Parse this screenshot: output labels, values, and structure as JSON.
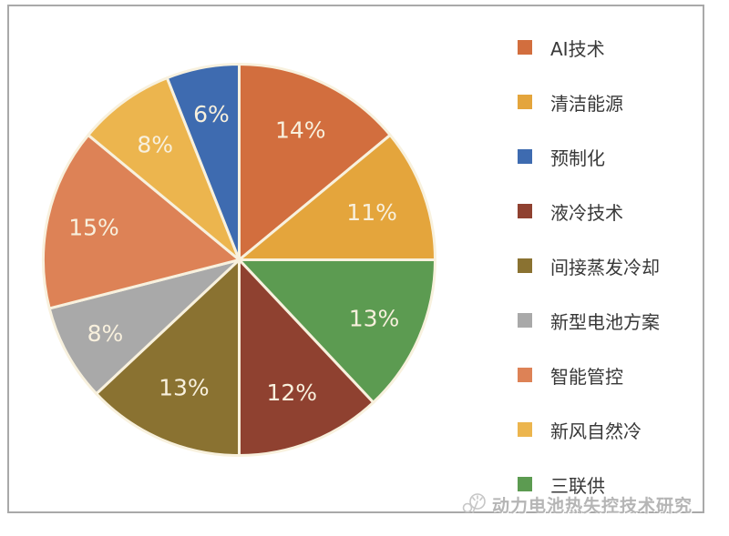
{
  "frame": {
    "border_color": "#a9a9a9",
    "background": "#ffffff"
  },
  "chart_data": {
    "type": "pie",
    "title": "",
    "start_angle_deg": 0,
    "direction": "clockwise",
    "label_format": "percent",
    "slice_label_color": "#f8f0dd",
    "slice_separator_color": "#f8f1de",
    "slices": [
      {
        "label": "AI技术",
        "value": 14,
        "pct_label": "14%",
        "color": "#d26e3e",
        "label_r": 0.735
      },
      {
        "label": "清洁能源",
        "value": 11,
        "pct_label": "11%",
        "color": "#e4a53c",
        "label_r": 0.72
      },
      {
        "label": "三联供",
        "value": 13,
        "pct_label": "13%",
        "color": "#5c9b51",
        "label_r": 0.75
      },
      {
        "label": "液冷技术",
        "value": 12,
        "pct_label": "12%",
        "color": "#8f4130",
        "label_r": 0.73
      },
      {
        "label": "间接蒸发冷却",
        "value": 13,
        "pct_label": "13%",
        "color": "#8a7231",
        "label_r": 0.71
      },
      {
        "label": "新型电池方案",
        "value": 8,
        "pct_label": "8%",
        "color": "#a9a9a9",
        "label_r": 0.78
      },
      {
        "label": "智能管控",
        "value": 15,
        "pct_label": "15%",
        "color": "#dd8256",
        "label_r": 0.76
      },
      {
        "label": "新风自然冷",
        "value": 8,
        "pct_label": "8%",
        "color": "#ecb54e",
        "label_r": 0.73
      },
      {
        "label": "预制化",
        "value": 6,
        "pct_label": "6%",
        "color": "#3e6bb0",
        "label_r": 0.76
      }
    ],
    "legend": {
      "position": "right",
      "order": [
        "AI技术",
        "清洁能源",
        "预制化",
        "液冷技术",
        "间接蒸发冷却",
        "新型电池方案",
        "智能管控",
        "新风自然冷",
        "三联供"
      ]
    }
  },
  "watermark": {
    "text": "动力电池热失控技术研究",
    "icon": "dandelion-logo-icon"
  }
}
